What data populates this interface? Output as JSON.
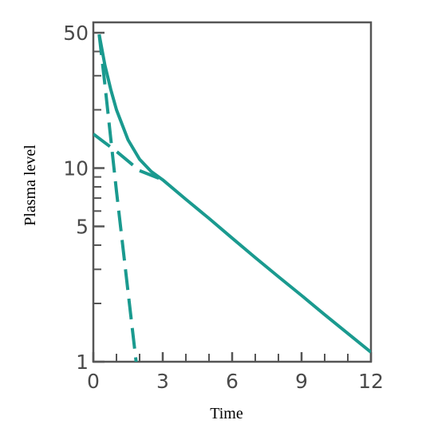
{
  "chart_data": {
    "type": "line",
    "title": "",
    "xlabel": "Time",
    "ylabel": "Plasma level",
    "xlim": [
      0,
      12
    ],
    "ylim": [
      1,
      50
    ],
    "yscale": "log",
    "x_ticks": [
      0,
      3,
      6,
      9,
      12
    ],
    "x_tick_labels": [
      "0",
      "3",
      "6",
      "9",
      "12"
    ],
    "x_minor_ticks": [
      1,
      2,
      4,
      5,
      7,
      8,
      10,
      11
    ],
    "y_ticks": [
      1,
      5,
      10,
      50
    ],
    "y_tick_labels": [
      "1",
      "5",
      "10",
      "50"
    ],
    "y_minor_ticks": [
      2,
      3,
      4,
      6,
      7,
      8,
      9,
      20,
      30,
      40
    ],
    "grid": false,
    "legend": "none",
    "colors": {
      "line": "#1a9a8f",
      "axis": "#555555"
    },
    "series": [
      {
        "style": "solid",
        "x": [
          0.25,
          0.5,
          0.75,
          1.0,
          1.5,
          2.0,
          2.5,
          3.0,
          4.0,
          5.0,
          6.0,
          7.0,
          8.0,
          9.0,
          10.0,
          11.0,
          12.0
        ],
        "y": [
          49,
          34,
          25.5,
          20,
          14,
          11.1,
          9.6,
          8.7,
          6.9,
          5.5,
          4.35,
          3.45,
          2.75,
          2.2,
          1.75,
          1.4,
          1.12
        ]
      },
      {
        "style": "dashed",
        "x": [
          0.25,
          0.5,
          1.0,
          1.5,
          2.0
        ],
        "y": [
          49,
          27,
          7.6,
          2.3,
          0.7
        ]
      },
      {
        "style": "dashed",
        "x": [
          0.0,
          1.0,
          2.0,
          3.0
        ],
        "y": [
          15,
          12.2,
          9.7,
          8.7
        ]
      }
    ]
  }
}
